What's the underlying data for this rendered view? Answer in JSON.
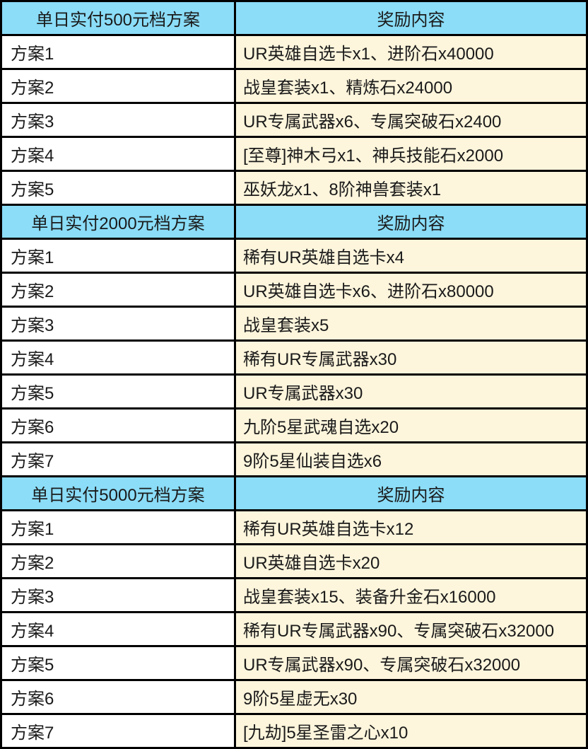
{
  "colors": {
    "header_bg": "#8bddf8",
    "reward_bg": "#fdf5dc",
    "plan_bg": "#ffffff",
    "border": "#000000"
  },
  "table": {
    "sections": [
      {
        "header": {
          "tier": "单日实付500元档方案",
          "reward": "奖励内容"
        },
        "rows": [
          {
            "plan": "方案1",
            "reward": "UR英雄自选卡x1、进阶石x40000"
          },
          {
            "plan": "方案2",
            "reward": "战皇套装x1、精炼石x24000"
          },
          {
            "plan": "方案3",
            "reward": "UR专属武器x6、专属突破石x2400"
          },
          {
            "plan": "方案4",
            "reward": "[至尊]神木弓x1、神兵技能石x2000"
          },
          {
            "plan": "方案5",
            "reward": "巫妖龙x1、8阶神兽套装x1"
          }
        ]
      },
      {
        "header": {
          "tier": "单日实付2000元档方案",
          "reward": "奖励内容"
        },
        "rows": [
          {
            "plan": "方案1",
            "reward": "稀有UR英雄自选卡x4"
          },
          {
            "plan": "方案2",
            "reward": "UR英雄自选卡x6、进阶石x80000"
          },
          {
            "plan": "方案3",
            "reward": "战皇套装x5"
          },
          {
            "plan": "方案4",
            "reward": "稀有UR专属武器x30"
          },
          {
            "plan": "方案5",
            "reward": "UR专属武器x30"
          },
          {
            "plan": "方案6",
            "reward": "九阶5星武魂自选x20"
          },
          {
            "plan": "方案7",
            "reward": "9阶5星仙装自选x6"
          }
        ]
      },
      {
        "header": {
          "tier": "单日实付5000元档方案",
          "reward": "奖励内容"
        },
        "rows": [
          {
            "plan": "方案1",
            "reward": "稀有UR英雄自选卡x12"
          },
          {
            "plan": "方案2",
            "reward": "UR英雄自选卡x20"
          },
          {
            "plan": "方案3",
            "reward": "战皇套装x15、装备升金石x16000"
          },
          {
            "plan": "方案4",
            "reward": "稀有UR专属武器x90、专属突破石x32000"
          },
          {
            "plan": "方案5",
            "reward": "UR专属武器x90、专属突破石x32000"
          },
          {
            "plan": "方案6",
            "reward": "9阶5星虚无x30"
          },
          {
            "plan": "方案7",
            "reward": "[九劫]5星圣雷之心x10"
          }
        ]
      }
    ]
  }
}
